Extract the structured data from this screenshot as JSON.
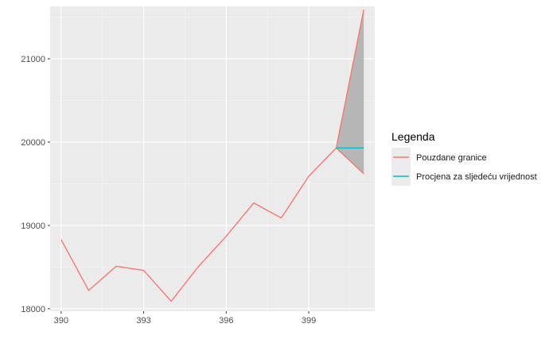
{
  "chart_data": {
    "type": "line",
    "title": "",
    "xlabel": "",
    "ylabel": "",
    "x": [
      390,
      391,
      392,
      393,
      394,
      395,
      396,
      397,
      398,
      399,
      400,
      401
    ],
    "xlim": [
      389.6,
      401.4
    ],
    "ylim": [
      17970,
      21630
    ],
    "x_ticks": [
      390,
      393,
      396,
      399
    ],
    "x_tick_labels": [
      "390",
      "393",
      "396",
      "399"
    ],
    "y_ticks": [
      18000,
      19000,
      20000,
      21000
    ],
    "y_tick_labels": [
      "18000",
      "19000",
      "20000",
      "21000"
    ],
    "grid": true,
    "legend_position": "right",
    "legend": {
      "title": "Legenda",
      "entries": [
        {
          "label": "Pouzdane granice",
          "color": "#F8766D"
        },
        {
          "label": "Procjena za sljedeću vrijednost",
          "color": "#00BFC4"
        }
      ]
    },
    "series": [
      {
        "name": "Pouzdane granice",
        "color": "#F8766D",
        "x": [
          390,
          391,
          392,
          393,
          394,
          395,
          396,
          397,
          398,
          399,
          400
        ],
        "values": [
          18830,
          18220,
          18510,
          18460,
          18090,
          18510,
          18870,
          19270,
          19090,
          19590,
          19930
        ]
      },
      {
        "name": "Pouzdane granice",
        "color": "#F8766D",
        "x": [
          400,
          401
        ],
        "values": [
          19930,
          21590
        ]
      },
      {
        "name": "Pouzdane granice",
        "color": "#F8766D",
        "x": [
          400,
          401
        ],
        "values": [
          19930,
          19620
        ]
      },
      {
        "name": "Procjena za sljedeću vrijednost",
        "color": "#00BFC4",
        "x": [
          400,
          401
        ],
        "values": [
          19930,
          19930
        ]
      }
    ],
    "ribbon": {
      "color": "#b3b3b3",
      "x": [
        400,
        401
      ],
      "lower": [
        19930,
        19620
      ],
      "upper": [
        19930,
        21590
      ]
    }
  }
}
